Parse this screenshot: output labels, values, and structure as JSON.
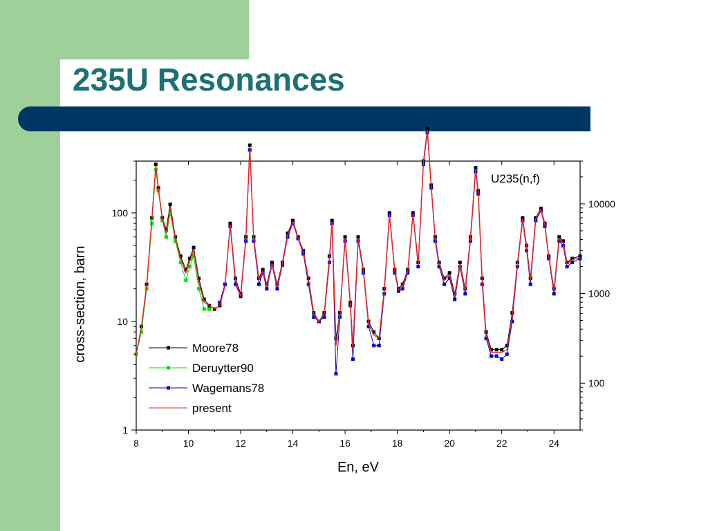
{
  "slide": {
    "title": "235U Resonances",
    "colors": {
      "sidebar": "#a0d09a",
      "title": "#1e7074",
      "bar": "#003663"
    }
  },
  "chart_data": {
    "type": "line",
    "annotation": "U235(n,f)",
    "xlabel": "En, eV",
    "ylabel": "cross-section, barn",
    "xlim": [
      8,
      25
    ],
    "ylim": [
      1,
      300
    ],
    "yscale": "log",
    "y2scale": "log",
    "y2lim": [
      30,
      30000
    ],
    "x_ticks": [
      "8",
      "10",
      "12",
      "14",
      "16",
      "18",
      "20",
      "22",
      "24"
    ],
    "y_ticks": [
      "1",
      "10",
      "100"
    ],
    "y2_ticks": [
      "100",
      "1000",
      "10000"
    ],
    "grid": false,
    "legend_position": "bottom-left",
    "series": [
      {
        "name": "Moore78",
        "color": "#000000",
        "marker": "square",
        "x": [
          8.0,
          8.2,
          8.4,
          8.6,
          8.75,
          8.85,
          9.0,
          9.15,
          9.3,
          9.5,
          9.7,
          9.9,
          10.05,
          10.2,
          10.4,
          10.6,
          10.8,
          11.0,
          11.2,
          11.4,
          11.6,
          11.8,
          12.0,
          12.2,
          12.35,
          12.5,
          12.7,
          12.85,
          13.0,
          13.2,
          13.4,
          13.6,
          13.8,
          14.0,
          14.2,
          14.4,
          14.6,
          14.8,
          15.0,
          15.2,
          15.4,
          15.5,
          15.65,
          15.8,
          16.0,
          16.2,
          16.3,
          16.5,
          16.7,
          16.9,
          17.1,
          17.3,
          17.5,
          17.7,
          17.9,
          18.05,
          18.2,
          18.4,
          18.6,
          18.8,
          19.0,
          19.15,
          19.3,
          19.45,
          19.6,
          19.8,
          20.0,
          20.2,
          20.4,
          20.6,
          20.8,
          21.0,
          21.1,
          21.25,
          21.4,
          21.6,
          21.8,
          22.0,
          22.2,
          22.4,
          22.6,
          22.8,
          22.95,
          23.1,
          23.3,
          23.5,
          23.65,
          23.8,
          24.0,
          24.2,
          24.35,
          24.5,
          24.7,
          25.0
        ],
        "y": [
          5,
          9,
          22,
          90,
          280,
          170,
          90,
          70,
          120,
          60,
          40,
          30,
          38,
          48,
          25,
          16,
          14,
          13,
          14,
          22,
          80,
          25,
          18,
          60,
          420,
          60,
          25,
          30,
          22,
          35,
          22,
          35,
          65,
          85,
          60,
          45,
          25,
          12,
          10,
          12,
          40,
          85,
          7,
          12,
          60,
          15,
          6,
          60,
          30,
          10,
          8,
          7,
          20,
          100,
          30,
          20,
          22,
          30,
          100,
          35,
          300,
          600,
          180,
          60,
          35,
          25,
          28,
          18,
          35,
          20,
          60,
          260,
          160,
          25,
          8,
          5.5,
          5.5,
          5.5,
          6,
          12,
          35,
          90,
          50,
          25,
          90,
          110,
          80,
          40,
          20,
          60,
          55,
          35,
          38,
          40
        ]
      },
      {
        "name": "Deruytter90",
        "color": "#00dd00",
        "marker": "square",
        "x": [
          8.0,
          8.2,
          8.4,
          8.6,
          8.75,
          8.85,
          9.0,
          9.15,
          9.3,
          9.5,
          9.7,
          9.9,
          10.05,
          10.2,
          10.4,
          10.6,
          10.8
        ],
        "y": [
          5,
          8,
          20,
          80,
          250,
          160,
          85,
          60,
          100,
          55,
          35,
          24,
          32,
          40,
          20,
          13,
          13
        ]
      },
      {
        "name": "Wagemans78",
        "color": "#0000cc",
        "marker": "square",
        "x": [
          11.2,
          11.4,
          11.6,
          11.8,
          12.0,
          12.2,
          12.35,
          12.5,
          12.7,
          12.85,
          13.0,
          13.2,
          13.4,
          13.6,
          13.8,
          14.0,
          14.2,
          14.4,
          14.6,
          14.8,
          15.0,
          15.2,
          15.4,
          15.5,
          15.65,
          15.8,
          16.0,
          16.2,
          16.3,
          16.5,
          16.7,
          16.9,
          17.1,
          17.3,
          17.5,
          17.7,
          17.9,
          18.05,
          18.2,
          18.4,
          18.6,
          18.8,
          19.0,
          19.15,
          19.3,
          19.45,
          19.6,
          19.8,
          20.0,
          20.2,
          20.4,
          20.6,
          20.8,
          21.0,
          21.1,
          21.25,
          21.4,
          21.6,
          21.8,
          22.0,
          22.2,
          22.4,
          22.6,
          22.8,
          22.95,
          23.1,
          23.3,
          23.5,
          23.65,
          23.8,
          24.0,
          24.2,
          24.35,
          24.5,
          24.7,
          25.0
        ],
        "y": [
          15,
          22,
          75,
          22,
          17,
          55,
          380,
          55,
          22,
          28,
          20,
          33,
          20,
          33,
          60,
          80,
          58,
          42,
          22,
          11,
          10,
          11,
          35,
          80,
          3.3,
          11,
          55,
          14,
          4.5,
          55,
          28,
          9,
          6,
          6,
          18,
          95,
          28,
          19,
          20,
          28,
          95,
          32,
          280,
          550,
          170,
          55,
          32,
          22,
          25,
          16,
          32,
          18,
          55,
          240,
          150,
          22,
          7,
          4.8,
          4.8,
          4.5,
          5,
          10,
          32,
          85,
          45,
          22,
          85,
          105,
          75,
          38,
          18,
          55,
          50,
          32,
          35,
          38
        ]
      },
      {
        "name": "present",
        "color": "#ee2222",
        "marker": "none",
        "x": [
          8.0,
          8.2,
          8.4,
          8.6,
          8.75,
          8.85,
          9.0,
          9.15,
          9.3,
          9.5,
          9.7,
          9.9,
          10.05,
          10.2,
          10.4,
          10.6,
          10.8,
          11.0,
          11.2,
          11.4,
          11.6,
          11.8,
          12.0,
          12.2,
          12.35,
          12.5,
          12.7,
          12.85,
          13.0,
          13.2,
          13.4,
          13.6,
          13.8,
          14.0,
          14.2,
          14.4,
          14.6,
          14.8,
          15.0,
          15.2,
          15.4,
          15.5,
          15.65,
          15.8,
          16.0,
          16.2,
          16.3,
          16.5,
          16.7,
          16.9,
          17.1,
          17.3,
          17.5,
          17.7,
          17.9,
          18.05,
          18.2,
          18.4,
          18.6,
          18.8,
          19.0,
          19.15,
          19.3,
          19.45,
          19.6,
          19.8,
          20.0,
          20.2,
          20.4,
          20.6,
          20.8,
          21.0,
          21.1,
          21.25,
          21.4,
          21.6,
          21.8,
          22.0,
          22.2,
          22.4,
          22.6,
          22.8,
          22.95,
          23.1,
          23.3,
          23.5,
          23.65,
          23.8,
          24.0,
          24.2,
          24.35,
          24.5,
          24.7,
          25.0
        ],
        "y": [
          5,
          9,
          21,
          88,
          270,
          165,
          88,
          65,
          110,
          58,
          38,
          28,
          36,
          45,
          23,
          15,
          14,
          13,
          14,
          21,
          78,
          24,
          17,
          58,
          400,
          58,
          24,
          29,
          21,
          34,
          21,
          34,
          63,
          83,
          59,
          44,
          24,
          11.5,
          10,
          11.5,
          38,
          83,
          6,
          11.5,
          58,
          14.5,
          5.5,
          58,
          29,
          9.5,
          7.5,
          7,
          19,
          98,
          29,
          19.5,
          21,
          29,
          98,
          34,
          290,
          580,
          175,
          58,
          34,
          24,
          27,
          17,
          34,
          19,
          58,
          250,
          155,
          24,
          7.5,
          5.2,
          5.2,
          5.2,
          5.5,
          11,
          34,
          88,
          48,
          24,
          88,
          108,
          78,
          39,
          19,
          58,
          53,
          34,
          37,
          39
        ]
      }
    ]
  }
}
